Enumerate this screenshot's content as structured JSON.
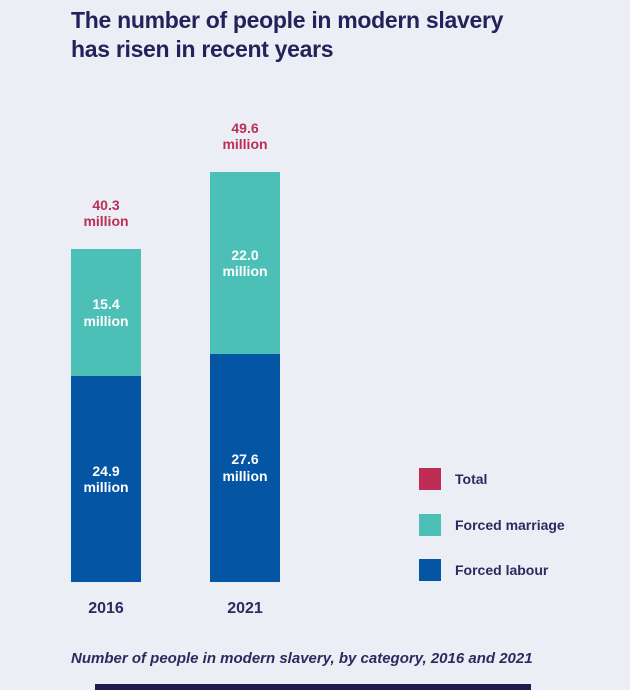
{
  "title": {
    "line1": "The number of people in modern slavery",
    "line2": "has risen in recent years"
  },
  "caption": "Number of people in modern slavery, by category, 2016 and 2021",
  "colors": {
    "background": "#ebeef4",
    "navy_text": "#23235c",
    "total_accent": "#bd2d56",
    "forced_marriage": "#4cc0b7",
    "forced_labour": "#0456a5",
    "footer_bar": "#1d1d4d"
  },
  "legend": {
    "items": [
      {
        "label": "Total",
        "color": "#bd2d56"
      },
      {
        "label": "Forced marriage",
        "color": "#4cc0b7"
      },
      {
        "label": "Forced labour",
        "color": "#0456a5"
      }
    ]
  },
  "chart_data": {
    "type": "bar",
    "stacked": true,
    "title": "The number of people in modern slavery has risen in recent years",
    "subtitle": "Number of people in modern slavery, by category, 2016 and 2021",
    "categories": [
      "2016",
      "2021"
    ],
    "series": [
      {
        "name": "Forced labour",
        "color": "#0456a5",
        "values": [
          24.9,
          27.6
        ]
      },
      {
        "name": "Forced marriage",
        "color": "#4cc0b7",
        "values": [
          15.4,
          22.0
        ]
      }
    ],
    "totals": [
      40.3,
      49.6
    ],
    "unit": "million",
    "total_label_color": "#bd2d56",
    "value_label_color": "#ffffff",
    "legend_position": "right",
    "grid": false,
    "axes_shown": false
  }
}
